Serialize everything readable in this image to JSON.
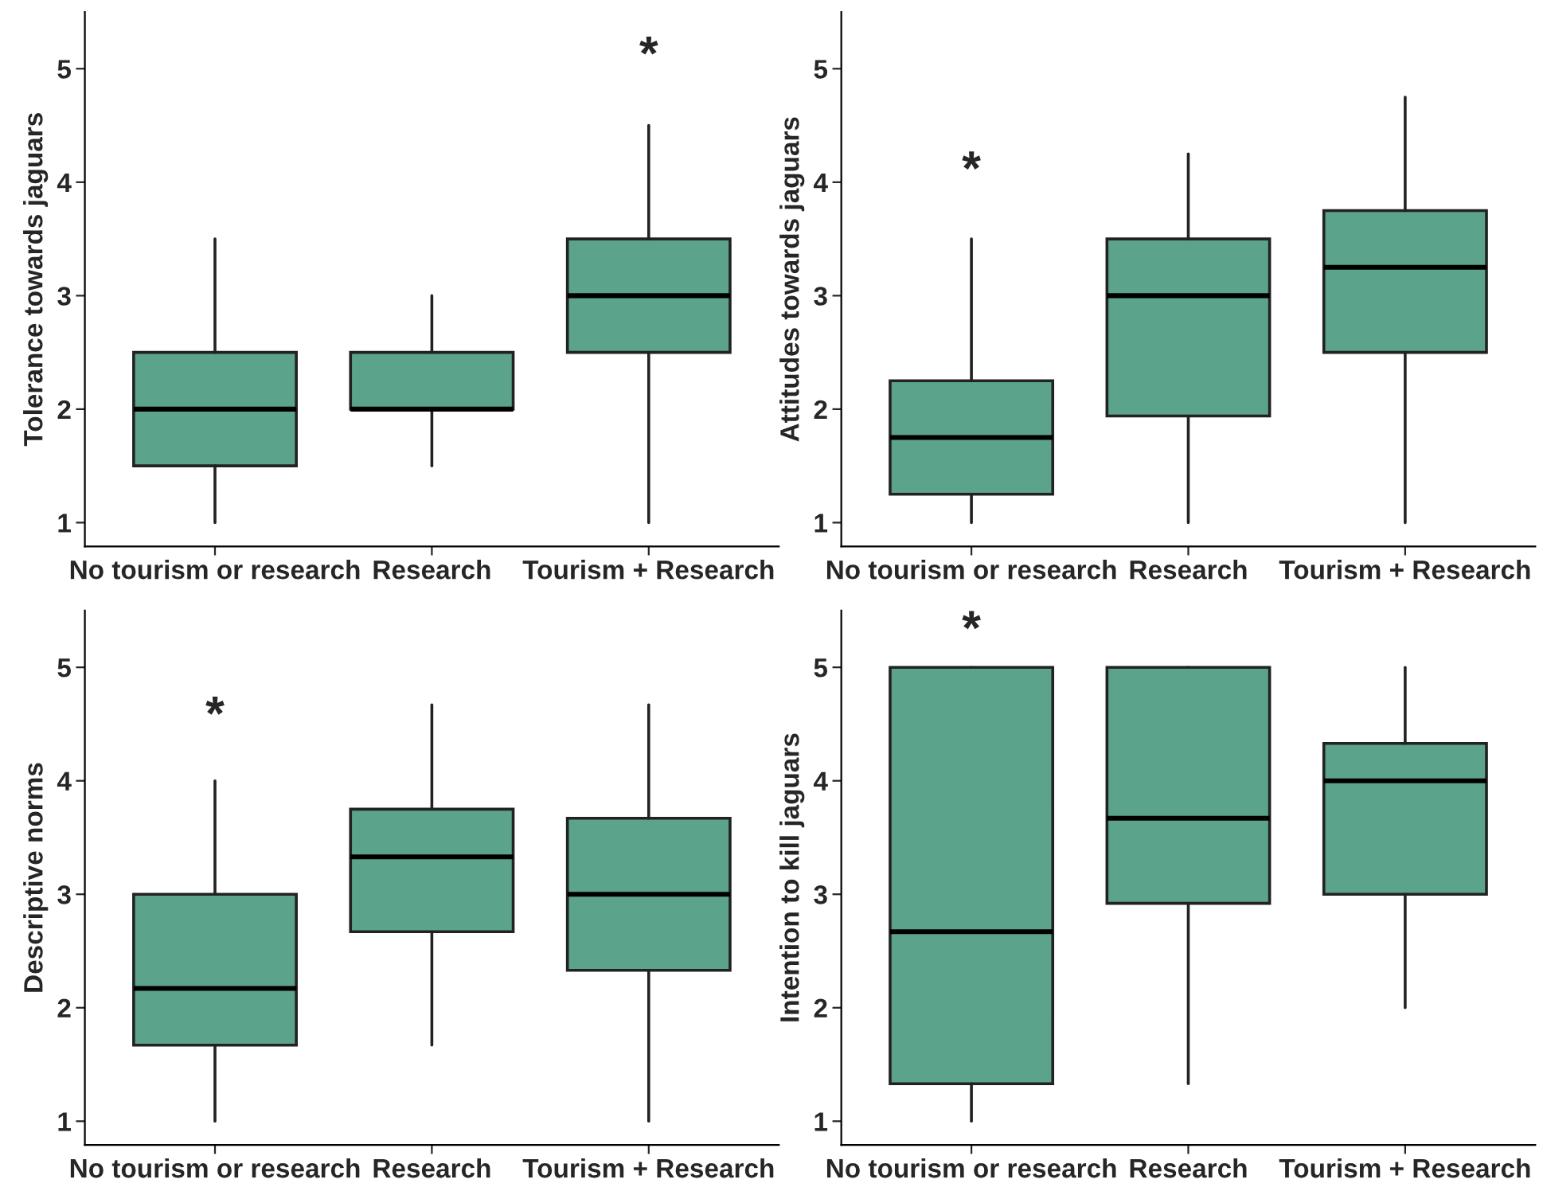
{
  "chart_data": [
    {
      "type": "box",
      "ylabel": "Tolerance towards jaguars",
      "categories": [
        "No tourism or research",
        "Research",
        "Tourism + Research"
      ],
      "color": "#5ba38a",
      "ylim": [
        0.79,
        5.5
      ],
      "yticks": [
        1,
        2,
        3,
        4,
        5
      ],
      "grid": false,
      "boxes": [
        {
          "low": 1,
          "q1": 1.5,
          "median": 2,
          "q3": 2.5,
          "high": 3.5
        },
        {
          "low": 1.5,
          "q1": 2,
          "median": 2,
          "q3": 2.5,
          "high": 3
        },
        {
          "low": 1,
          "q1": 2.5,
          "median": 3,
          "q3": 3.5,
          "high": 4.5
        }
      ],
      "annotations": [
        "*"
      ]
    },
    {
      "type": "box",
      "ylabel": "Attitudes towards jaguars",
      "categories": [
        "No tourism or research",
        "Research",
        "Tourism + Research"
      ],
      "color": "#5ba38a",
      "ylim": [
        0.79,
        5.5
      ],
      "yticks": [
        1,
        2,
        3,
        4,
        5
      ],
      "grid": false,
      "boxes": [
        {
          "low": 1,
          "q1": 1.25,
          "median": 1.75,
          "q3": 2.25,
          "high": 3.5
        },
        {
          "low": 1,
          "q1": 1.94,
          "median": 3,
          "q3": 3.5,
          "high": 4.25
        },
        {
          "low": 1,
          "q1": 2.5,
          "median": 3.25,
          "q3": 3.75,
          "high": 4.75
        }
      ],
      "annotations": [
        "*"
      ]
    },
    {
      "type": "box",
      "ylabel": "Descriptive norms",
      "categories": [
        "No tourism or research",
        "Research",
        "Tourism + Research"
      ],
      "color": "#5ba38a",
      "ylim": [
        0.79,
        5.5
      ],
      "yticks": [
        1,
        2,
        3,
        4,
        5
      ],
      "grid": false,
      "boxes": [
        {
          "low": 1,
          "q1": 1.67,
          "median": 2.17,
          "q3": 3,
          "high": 4
        },
        {
          "low": 1.67,
          "q1": 2.67,
          "median": 3.33,
          "q3": 3.75,
          "high": 4.67
        },
        {
          "low": 1,
          "q1": 2.33,
          "median": 3,
          "q3": 3.67,
          "high": 4.67
        }
      ],
      "annotations": [
        "*"
      ]
    },
    {
      "type": "box",
      "ylabel": "Intention to kill jaguars",
      "categories": [
        "No tourism or research",
        "Research",
        "Tourism + Research"
      ],
      "color": "#5ba38a",
      "ylim": [
        0.79,
        5.5
      ],
      "yticks": [
        1,
        2,
        3,
        4,
        5
      ],
      "grid": false,
      "boxes": [
        {
          "low": 1,
          "q1": 1.33,
          "median": 2.67,
          "q3": 5,
          "high": 5
        },
        {
          "low": 1.33,
          "q1": 2.92,
          "median": 3.67,
          "q3": 5,
          "high": 5
        },
        {
          "low": 2,
          "q1": 3,
          "median": 4,
          "q3": 4.33,
          "high": 5
        }
      ],
      "annotations": [
        "*"
      ]
    }
  ]
}
